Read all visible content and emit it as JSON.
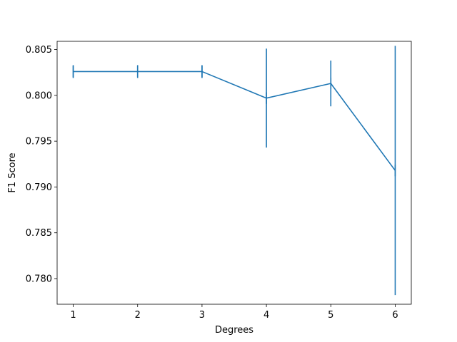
{
  "chart_data": {
    "type": "line",
    "title": "",
    "xlabel": "Degrees",
    "ylabel": "F1 Score",
    "xlim": [
      0.75,
      6.25
    ],
    "ylim": [
      0.7772,
      0.8059
    ],
    "x_ticks": [
      1,
      2,
      3,
      4,
      5,
      6
    ],
    "x_tick_labels": [
      "1",
      "2",
      "3",
      "4",
      "5",
      "6"
    ],
    "y_ticks": [
      0.78,
      0.785,
      0.79,
      0.795,
      0.8,
      0.805
    ],
    "y_tick_labels": [
      "0.780",
      "0.785",
      "0.790",
      "0.795",
      "0.800",
      "0.805"
    ],
    "grid": false,
    "legend": "none",
    "series": [
      {
        "color": "#1f77b4",
        "x": [
          1,
          2,
          3,
          4,
          5,
          6
        ],
        "y": [
          0.8026,
          0.8026,
          0.8026,
          0.7997,
          0.8013,
          0.7918
        ],
        "error": [
          0.0007,
          0.0007,
          0.0007,
          0.0054,
          0.0025,
          0.0136
        ]
      }
    ]
  }
}
